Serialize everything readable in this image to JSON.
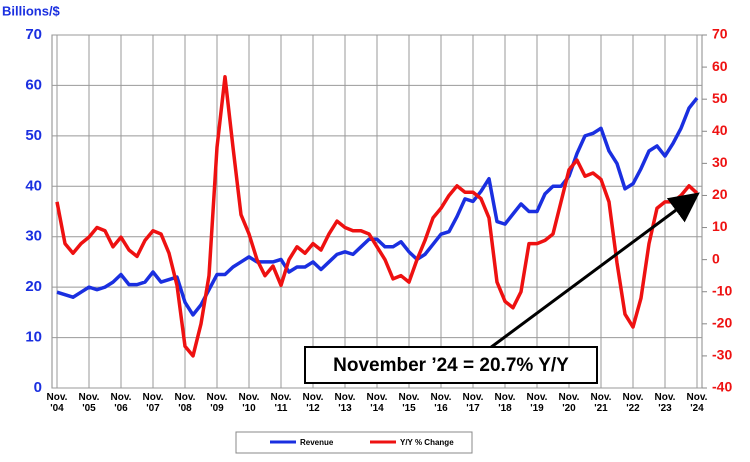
{
  "chart_data": {
    "type": "line",
    "y_label": "Billions/$",
    "annotation": "November ’24 = 20.7% Y/Y",
    "categories": [
      "Nov. '04",
      null,
      null,
      null,
      "Nov. '05",
      null,
      null,
      null,
      "Nov. '06",
      null,
      null,
      null,
      "Nov. '07",
      null,
      null,
      null,
      "Nov. '08",
      null,
      null,
      null,
      "Nov. '09",
      null,
      null,
      null,
      "Nov. '10",
      null,
      null,
      null,
      "Nov. '11",
      null,
      null,
      null,
      "Nov. '12",
      null,
      null,
      null,
      "Nov. '13",
      null,
      null,
      null,
      "Nov. '14",
      null,
      null,
      null,
      "Nov. '15",
      null,
      null,
      null,
      "Nov. '16",
      null,
      null,
      null,
      "Nov. '17",
      null,
      null,
      null,
      "Nov. '18",
      null,
      null,
      null,
      "Nov. '19",
      null,
      null,
      null,
      "Nov. '20",
      null,
      null,
      null,
      "Nov. '21",
      null,
      null,
      null,
      "Nov. '22",
      null,
      null,
      null,
      "Nov. '23",
      null,
      null,
      null,
      "Nov. '24"
    ],
    "series": [
      {
        "name": "Revenue",
        "color": "#1a2fe0",
        "axis": "y",
        "values": [
          19,
          18.5,
          18,
          19,
          20,
          19.5,
          20,
          21,
          22.5,
          20.5,
          20.5,
          21,
          23,
          21,
          21.5,
          22,
          17,
          14.5,
          16.5,
          19.5,
          22.5,
          22.5,
          24,
          25,
          26,
          25,
          25,
          25,
          25.5,
          23,
          24,
          24,
          25,
          23.5,
          25,
          26.5,
          27,
          26.5,
          28,
          29.5,
          29.5,
          28,
          28,
          29,
          27,
          25.5,
          26.5,
          28.5,
          30.5,
          31,
          34,
          37.5,
          37,
          39,
          41.5,
          33,
          32.5,
          34.5,
          36.5,
          35,
          35,
          38.5,
          40,
          40,
          42,
          46.5,
          50,
          50.5,
          51.5,
          47,
          44.5,
          39.5,
          40.5,
          43.5,
          47,
          48,
          46,
          48.5,
          51.5,
          55.5,
          57.5
        ]
      },
      {
        "name": "Y/Y % Change",
        "color": "#ee1111",
        "axis": "y2",
        "values": [
          18,
          5,
          2,
          5,
          7,
          10,
          9,
          4,
          7,
          3,
          1,
          6,
          9,
          8,
          2,
          -8,
          -27,
          -30,
          -20,
          -5,
          35,
          57,
          35,
          14,
          8,
          0,
          -5,
          -2,
          -8,
          0,
          4,
          2,
          5,
          3,
          8,
          12,
          10,
          9,
          9,
          8,
          4,
          0,
          -6,
          -5,
          -7,
          0,
          6,
          13,
          16,
          20,
          23,
          21,
          21,
          19,
          13,
          -7,
          -13,
          -15,
          -10,
          5,
          5,
          6,
          8,
          18,
          28,
          31,
          26,
          27,
          25,
          18,
          -1,
          -17,
          -21,
          -12,
          5,
          16,
          18,
          18,
          20,
          23,
          20.7
        ]
      }
    ],
    "ylim": [
      0,
      70
    ],
    "yticks": [
      0,
      10,
      20,
      30,
      40,
      50,
      60,
      70
    ],
    "y2lim": [
      -40,
      70
    ],
    "y2ticks": [
      -40,
      -30,
      -20,
      -10,
      0,
      10,
      20,
      30,
      40,
      50,
      60,
      70
    ],
    "grid": true
  }
}
